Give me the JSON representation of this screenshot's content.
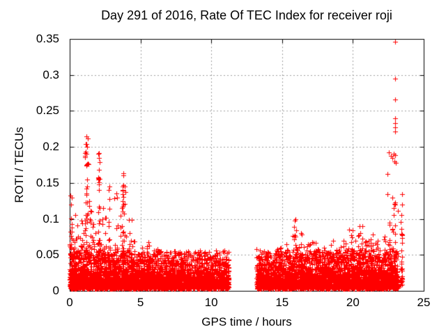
{
  "chart_data": {
    "type": "scatter",
    "title": "Day 291 of 2016, Rate Of TEC Index for receiver roji",
    "xlabel": "GPS time / hours",
    "ylabel": "ROTI / TECUs",
    "xlim": [
      0,
      25
    ],
    "ylim": [
      0,
      0.35
    ],
    "xticks": [
      0,
      5,
      10,
      15,
      20,
      25
    ],
    "xticklabels": [
      "0",
      "5",
      "10",
      "15",
      "20",
      "25"
    ],
    "yticks": [
      0,
      0.05,
      0.1,
      0.15,
      0.2,
      0.25,
      0.3,
      0.35
    ],
    "yticklabels": [
      "0",
      "0.05",
      "0.1",
      "0.15",
      "0.2",
      "0.25",
      "0.3",
      "0.35"
    ],
    "grid": true,
    "grid_style": "dotted",
    "legend": false,
    "marker": "plus",
    "marker_size_px": 7,
    "colors": {
      "marker": "#ff0000",
      "grid": "#a0a0a0",
      "border": "#000000",
      "background": "#ffffff",
      "text": "#000000"
    },
    "data_gap_hours": [
      11.25,
      13.2
    ],
    "data_end_hour": 23.5,
    "baseline_segments": [
      {
        "x_start": 0.0,
        "x_end": 11.25,
        "count": 3600,
        "y_base": 0.003,
        "y_exp_scale": 0.014,
        "y_cap": 0.055
      },
      {
        "x_start": 13.2,
        "x_end": 23.2,
        "count": 3300,
        "y_base": 0.003,
        "y_exp_scale": 0.013,
        "y_cap": 0.055
      }
    ],
    "bursts_columns": [
      "x_center_hours",
      "x_spread_hours",
      "count",
      "y_min",
      "y_max"
    ],
    "bursts": [
      [
        0.08,
        0.06,
        20,
        0.045,
        0.13
      ],
      [
        0.35,
        0.12,
        16,
        0.045,
        0.105
      ],
      [
        0.8,
        0.1,
        10,
        0.04,
        0.075
      ],
      [
        1.2,
        0.07,
        40,
        0.05,
        0.212
      ],
      [
        1.45,
        0.1,
        18,
        0.045,
        0.125
      ],
      [
        1.75,
        0.1,
        10,
        0.04,
        0.08
      ],
      [
        2.07,
        0.06,
        25,
        0.05,
        0.19
      ],
      [
        2.45,
        0.08,
        12,
        0.04,
        0.115
      ],
      [
        2.8,
        0.07,
        10,
        0.04,
        0.14
      ],
      [
        3.3,
        0.08,
        8,
        0.04,
        0.13
      ],
      [
        3.78,
        0.07,
        30,
        0.05,
        0.163
      ],
      [
        4.1,
        0.1,
        10,
        0.04,
        0.08
      ],
      [
        4.5,
        0.15,
        10,
        0.04,
        0.07
      ],
      [
        5.0,
        0.2,
        12,
        0.04,
        0.06
      ],
      [
        5.6,
        0.15,
        10,
        0.04,
        0.068
      ],
      [
        6.3,
        0.3,
        12,
        0.035,
        0.058
      ],
      [
        7.2,
        0.3,
        10,
        0.035,
        0.055
      ],
      [
        8.0,
        0.3,
        8,
        0.035,
        0.05
      ],
      [
        9.5,
        0.4,
        8,
        0.03,
        0.048
      ],
      [
        10.5,
        0.4,
        8,
        0.03,
        0.05
      ],
      [
        11.1,
        0.1,
        6,
        0.03,
        0.052
      ],
      [
        2.2,
        1.4,
        50,
        0.045,
        0.1
      ],
      [
        13.4,
        0.15,
        10,
        0.035,
        0.058
      ],
      [
        14.0,
        0.2,
        10,
        0.035,
        0.055
      ],
      [
        14.7,
        0.2,
        10,
        0.035,
        0.06
      ],
      [
        15.3,
        0.15,
        10,
        0.04,
        0.065
      ],
      [
        15.92,
        0.08,
        20,
        0.045,
        0.1
      ],
      [
        16.3,
        0.12,
        14,
        0.04,
        0.08
      ],
      [
        16.8,
        0.2,
        10,
        0.04,
        0.065
      ],
      [
        17.3,
        0.12,
        10,
        0.04,
        0.068
      ],
      [
        17.9,
        0.2,
        10,
        0.04,
        0.06
      ],
      [
        18.5,
        0.15,
        10,
        0.04,
        0.07
      ],
      [
        19.1,
        0.2,
        10,
        0.04,
        0.062
      ],
      [
        19.6,
        0.15,
        10,
        0.04,
        0.07
      ],
      [
        19.95,
        0.1,
        14,
        0.045,
        0.085
      ],
      [
        20.6,
        0.1,
        16,
        0.045,
        0.09
      ],
      [
        21.0,
        0.15,
        10,
        0.04,
        0.07
      ],
      [
        21.35,
        0.12,
        12,
        0.04,
        0.078
      ],
      [
        21.8,
        0.2,
        10,
        0.04,
        0.07
      ],
      [
        22.2,
        0.15,
        12,
        0.04,
        0.075
      ],
      [
        22.6,
        0.12,
        16,
        0.045,
        0.095
      ],
      [
        22.95,
        0.1,
        18,
        0.05,
        0.13
      ],
      [
        19.0,
        2.2,
        40,
        0.04,
        0.07
      ],
      [
        23.45,
        0.03,
        26,
        0.008,
        0.096
      ]
    ],
    "outlier_points": [
      [
        0.06,
        0.132
      ],
      [
        0.1,
        0.12
      ],
      [
        1.2,
        0.215
      ],
      [
        1.21,
        0.2
      ],
      [
        1.19,
        0.19
      ],
      [
        1.2,
        0.175
      ],
      [
        1.24,
        0.155
      ],
      [
        1.18,
        0.142
      ],
      [
        2.05,
        0.191
      ],
      [
        2.1,
        0.179
      ],
      [
        2.07,
        0.168
      ],
      [
        2.05,
        0.148
      ],
      [
        2.82,
        0.145
      ],
      [
        3.3,
        0.135
      ],
      [
        3.77,
        0.163
      ],
      [
        3.79,
        0.147
      ],
      [
        3.76,
        0.14
      ],
      [
        3.8,
        0.131
      ],
      [
        3.78,
        0.12
      ],
      [
        3.76,
        0.11
      ],
      [
        15.9,
        0.098
      ],
      [
        22.43,
        0.162
      ],
      [
        22.45,
        0.134
      ],
      [
        22.55,
        0.192
      ],
      [
        22.7,
        0.188
      ],
      [
        22.8,
        0.185
      ],
      [
        22.9,
        0.19
      ],
      [
        23.0,
        0.189
      ],
      [
        22.95,
        0.18
      ],
      [
        23.05,
        0.178
      ],
      [
        22.97,
        0.346
      ],
      [
        22.97,
        0.295
      ],
      [
        22.98,
        0.266
      ],
      [
        22.97,
        0.24
      ],
      [
        22.98,
        0.233
      ],
      [
        22.97,
        0.227
      ],
      [
        22.98,
        0.221
      ],
      [
        23.45,
        0.134
      ],
      [
        23.45,
        0.12
      ],
      [
        23.44,
        0.105
      ]
    ]
  }
}
